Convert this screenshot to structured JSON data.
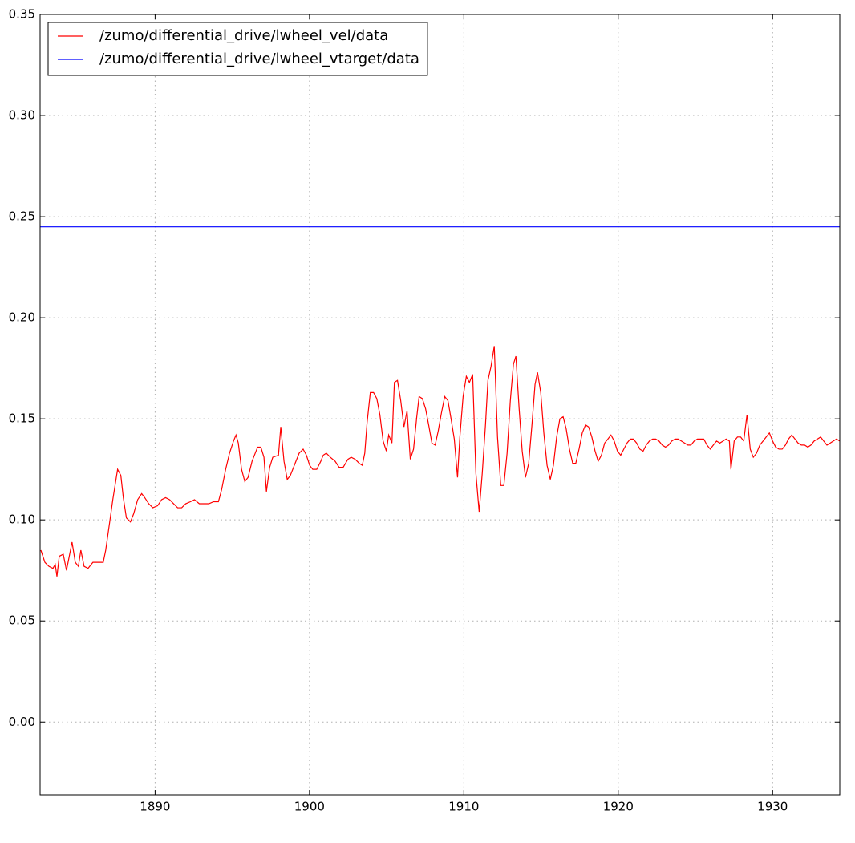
{
  "chart_data": {
    "type": "line",
    "xlim": [
      1882.55,
      1934.35
    ],
    "ylim": [
      -0.036,
      0.35
    ],
    "xticks": [
      1890,
      1900,
      1910,
      1920,
      1930
    ],
    "yticks": [
      {
        "value": 0,
        "label": "0.00"
      },
      0.05,
      {
        "value": 0.1,
        "label": "0.10"
      },
      0.15,
      {
        "value": 0.2,
        "label": "0.20"
      },
      0.25,
      {
        "value": 0.3,
        "label": "0.30"
      },
      0.35
    ],
    "grid": true,
    "legend": "upper left",
    "series": [
      {
        "name": "/zumo/differential_drive/lwheel_vel/data",
        "color": "#ff0000",
        "x": [
          1882.6,
          1882.86,
          1883.12,
          1883.38,
          1883.53,
          1883.64,
          1883.79,
          1884.05,
          1884.26,
          1884.62,
          1884.83,
          1885.03,
          1885.19,
          1885.4,
          1885.66,
          1885.97,
          1886.23,
          1886.49,
          1886.64,
          1886.8,
          1887.06,
          1887.26,
          1887.57,
          1887.78,
          1887.94,
          1888.14,
          1888.4,
          1888.61,
          1888.87,
          1889.13,
          1889.33,
          1889.59,
          1889.85,
          1890.16,
          1890.42,
          1890.68,
          1890.94,
          1891.2,
          1891.46,
          1891.72,
          1891.98,
          1892.29,
          1892.55,
          1892.86,
          1893.22,
          1893.48,
          1893.79,
          1894.1,
          1894.31,
          1894.57,
          1894.82,
          1895.08,
          1895.24,
          1895.39,
          1895.6,
          1895.81,
          1896.02,
          1896.28,
          1896.64,
          1896.85,
          1897.05,
          1897.21,
          1897.42,
          1897.62,
          1897.99,
          1898.14,
          1898.35,
          1898.56,
          1898.76,
          1899.07,
          1899.33,
          1899.59,
          1899.8,
          1900.01,
          1900.21,
          1900.47,
          1900.73,
          1900.89,
          1901.09,
          1901.35,
          1901.66,
          1901.92,
          1902.18,
          1902.49,
          1902.7,
          1902.96,
          1903.22,
          1903.42,
          1903.58,
          1903.73,
          1903.94,
          1904.15,
          1904.36,
          1904.56,
          1904.77,
          1904.98,
          1905.13,
          1905.34,
          1905.5,
          1905.7,
          1905.91,
          1906.12,
          1906.32,
          1906.53,
          1906.74,
          1906.95,
          1907.1,
          1907.31,
          1907.52,
          1907.72,
          1907.93,
          1908.14,
          1908.34,
          1908.55,
          1908.76,
          1908.97,
          1909.17,
          1909.38,
          1909.59,
          1909.74,
          1909.95,
          1910.16,
          1910.36,
          1910.57,
          1910.78,
          1910.99,
          1911.19,
          1911.4,
          1911.56,
          1911.76,
          1911.97,
          1912.18,
          1912.39,
          1912.59,
          1912.8,
          1913.01,
          1913.21,
          1913.37,
          1913.58,
          1913.78,
          1913.99,
          1914.2,
          1914.41,
          1914.61,
          1914.77,
          1914.98,
          1915.18,
          1915.39,
          1915.6,
          1915.8,
          1916.01,
          1916.22,
          1916.43,
          1916.63,
          1916.84,
          1917.05,
          1917.25,
          1917.46,
          1917.67,
          1917.88,
          1918.08,
          1918.29,
          1918.5,
          1918.7,
          1918.91,
          1919.12,
          1919.33,
          1919.53,
          1919.74,
          1919.95,
          1920.16,
          1920.36,
          1920.57,
          1920.78,
          1920.98,
          1921.19,
          1921.4,
          1921.61,
          1921.81,
          1922.02,
          1922.23,
          1922.43,
          1922.64,
          1922.85,
          1923.06,
          1923.26,
          1923.47,
          1923.68,
          1923.88,
          1924.09,
          1924.3,
          1924.51,
          1924.71,
          1924.92,
          1925.13,
          1925.34,
          1925.54,
          1925.75,
          1925.96,
          1926.16,
          1926.37,
          1926.58,
          1926.79,
          1926.99,
          1927.2,
          1927.3,
          1927.51,
          1927.72,
          1927.93,
          1928.13,
          1928.34,
          1928.55,
          1928.75,
          1928.96,
          1929.17,
          1929.38,
          1929.58,
          1929.79,
          1930.0,
          1930.2,
          1930.41,
          1930.62,
          1930.83,
          1931.03,
          1931.24,
          1931.45,
          1931.65,
          1931.86,
          1932.07,
          1932.28,
          1932.48,
          1932.69,
          1932.9,
          1933.11,
          1933.31,
          1933.52,
          1933.73,
          1933.93,
          1934.14,
          1934.35
        ],
        "values": [
          0.085,
          0.079,
          0.077,
          0.076,
          0.078,
          0.072,
          0.082,
          0.083,
          0.075,
          0.089,
          0.079,
          0.077,
          0.085,
          0.077,
          0.076,
          0.079,
          0.079,
          0.079,
          0.079,
          0.085,
          0.099,
          0.11,
          0.125,
          0.122,
          0.111,
          0.101,
          0.099,
          0.103,
          0.11,
          0.113,
          0.111,
          0.108,
          0.106,
          0.107,
          0.11,
          0.111,
          0.11,
          0.108,
          0.106,
          0.106,
          0.108,
          0.109,
          0.11,
          0.108,
          0.108,
          0.108,
          0.109,
          0.109,
          0.115,
          0.125,
          0.133,
          0.139,
          0.142,
          0.138,
          0.125,
          0.119,
          0.121,
          0.129,
          0.136,
          0.136,
          0.131,
          0.114,
          0.126,
          0.131,
          0.132,
          0.146,
          0.129,
          0.12,
          0.122,
          0.128,
          0.133,
          0.135,
          0.132,
          0.127,
          0.125,
          0.125,
          0.129,
          0.132,
          0.133,
          0.131,
          0.129,
          0.126,
          0.126,
          0.13,
          0.131,
          0.13,
          0.128,
          0.127,
          0.133,
          0.148,
          0.163,
          0.163,
          0.16,
          0.152,
          0.139,
          0.134,
          0.142,
          0.138,
          0.168,
          0.169,
          0.159,
          0.146,
          0.154,
          0.13,
          0.135,
          0.151,
          0.161,
          0.16,
          0.155,
          0.147,
          0.138,
          0.137,
          0.144,
          0.153,
          0.161,
          0.159,
          0.15,
          0.14,
          0.121,
          0.141,
          0.161,
          0.171,
          0.168,
          0.172,
          0.123,
          0.104,
          0.123,
          0.147,
          0.169,
          0.176,
          0.186,
          0.141,
          0.117,
          0.117,
          0.133,
          0.159,
          0.177,
          0.181,
          0.155,
          0.134,
          0.121,
          0.128,
          0.147,
          0.167,
          0.173,
          0.163,
          0.143,
          0.127,
          0.12,
          0.127,
          0.141,
          0.15,
          0.151,
          0.145,
          0.135,
          0.128,
          0.128,
          0.135,
          0.143,
          0.147,
          0.146,
          0.141,
          0.134,
          0.129,
          0.132,
          0.138,
          0.14,
          0.142,
          0.139,
          0.134,
          0.132,
          0.135,
          0.138,
          0.14,
          0.14,
          0.138,
          0.135,
          0.134,
          0.137,
          0.139,
          0.14,
          0.14,
          0.139,
          0.137,
          0.136,
          0.137,
          0.139,
          0.14,
          0.14,
          0.139,
          0.138,
          0.137,
          0.137,
          0.139,
          0.14,
          0.14,
          0.14,
          0.137,
          0.135,
          0.137,
          0.139,
          0.138,
          0.139,
          0.14,
          0.139,
          0.125,
          0.139,
          0.141,
          0.141,
          0.139,
          0.152,
          0.135,
          0.131,
          0.133,
          0.137,
          0.139,
          0.141,
          0.143,
          0.139,
          0.136,
          0.135,
          0.135,
          0.137,
          0.14,
          0.142,
          0.14,
          0.138,
          0.137,
          0.137,
          0.136,
          0.137,
          0.139,
          0.14,
          0.141,
          0.139,
          0.137,
          0.138,
          0.139,
          0.14,
          0.139
        ]
      },
      {
        "name": "/zumo/differential_drive/lwheel_vtarget/data",
        "color": "#0000ff",
        "x": [
          1882.55,
          1934.35
        ],
        "values": [
          0.245,
          0.245
        ]
      }
    ]
  }
}
